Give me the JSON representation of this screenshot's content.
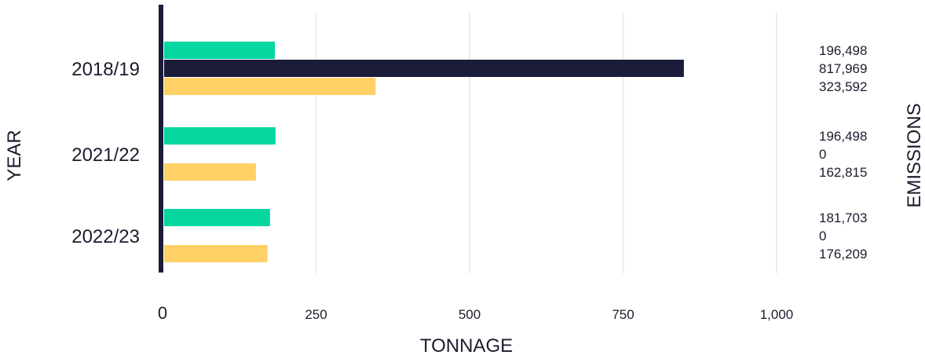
{
  "chart_data": {
    "type": "bar",
    "orientation": "horizontal",
    "title": "",
    "xlabel": "TONNAGE",
    "ylabel": "YEAR",
    "y2label": "EMISSIONS",
    "xlim": [
      0,
      1000
    ],
    "xticks": [
      0,
      250,
      500,
      750,
      1000
    ],
    "xtick_labels": [
      "0",
      "250",
      "500",
      "750",
      "1,000"
    ],
    "grid": true,
    "legend": "none",
    "categories": [
      "2018/19",
      "2021/22",
      "2022/23"
    ],
    "series": [
      {
        "color": "#06d6a0",
        "values": [
          183,
          184,
          175
        ]
      },
      {
        "color": "#1b1b3a",
        "values": [
          849,
          0,
          0
        ]
      },
      {
        "color": "#ffd166",
        "values": [
          347,
          152,
          171
        ]
      }
    ],
    "emission_labels": [
      [
        "196,498",
        "817,969",
        "323,592"
      ],
      [
        "196,498",
        "0",
        "162,815"
      ],
      [
        "181,703",
        "0",
        "176,209"
      ]
    ]
  }
}
